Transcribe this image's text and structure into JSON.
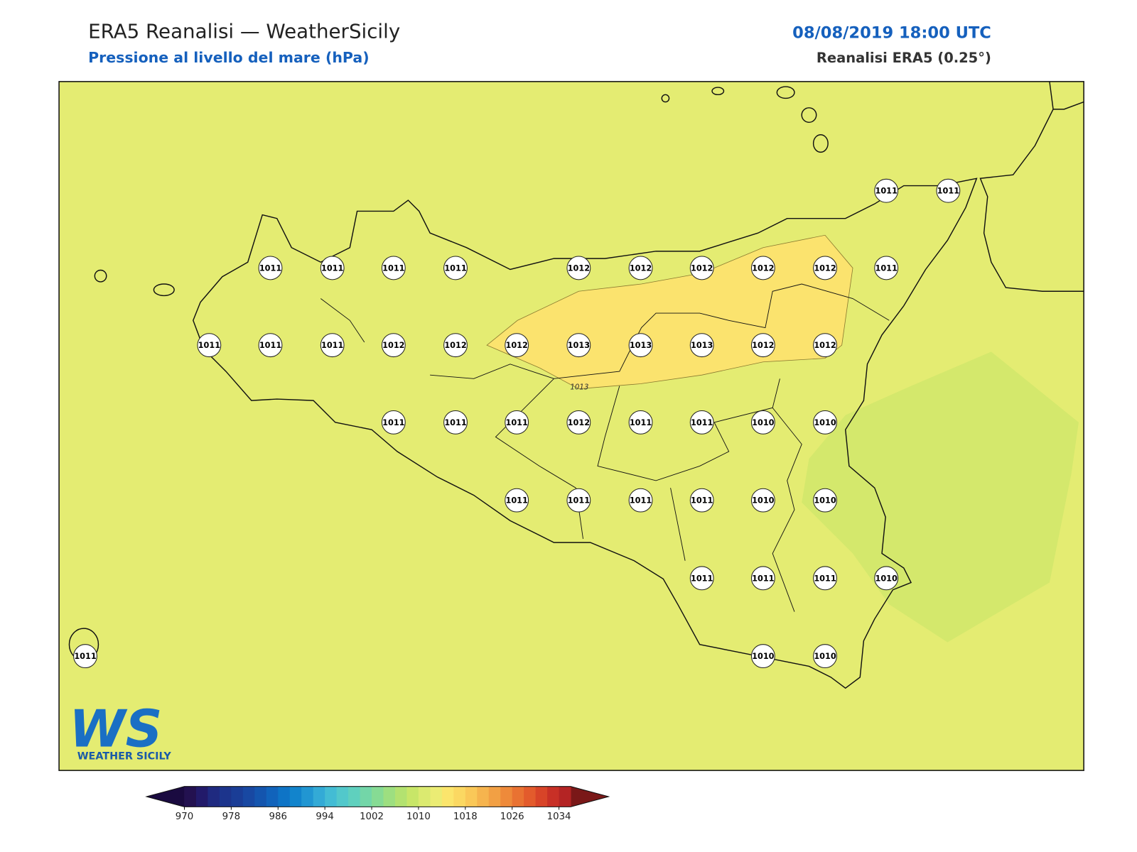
{
  "header": {
    "title": "ERA5 Reanalisi — WeatherSicily",
    "subtitle": "Pressione al livello del mare (hPa)",
    "date": "08/08/2019 18:00 UTC",
    "source": "Reanalisi ERA5 (0.25°)"
  },
  "stations": [
    [
      1011,
      1011
    ],
    [
      1011,
      1011,
      1011,
      1011,
      1012,
      1012,
      1012,
      1012,
      1012,
      1011
    ],
    [
      1011,
      1011,
      1011,
      1012,
      1012,
      1012,
      1013,
      1013,
      1013,
      1012,
      1012
    ],
    [
      1011,
      1011,
      1011,
      1012,
      1011,
      1011,
      1010,
      1010
    ],
    [
      1011,
      1011,
      1011,
      1011,
      1010,
      1010
    ],
    [
      1011,
      1011,
      1011,
      1010
    ],
    [
      1011,
      1010,
      1010
    ]
  ],
  "contour_label": 1013,
  "colorbar": {
    "ticks": [
      970,
      978,
      986,
      994,
      1002,
      1010,
      1018,
      1026,
      1034
    ],
    "step": 2,
    "colors": [
      "#231150",
      "#221a6a",
      "#1f2a80",
      "#1c348c",
      "#1a3d96",
      "#1848a2",
      "#1455ae",
      "#1163bb",
      "#0e74c6",
      "#1284cc",
      "#2196d2",
      "#33aad6",
      "#43bcd4",
      "#52c8cb",
      "#5fd0be",
      "#73d6a8",
      "#86db94",
      "#9ddf80",
      "#b3e270",
      "#c8e668",
      "#dbea70",
      "#ebec74",
      "#fbe56c",
      "#fbd862",
      "#fac858",
      "#f6b44e",
      "#f2a044",
      "#ee8a3a",
      "#e97232",
      "#e35b2c",
      "#d84428",
      "#c83026",
      "#b42424"
    ],
    "under": "#1a0a40",
    "over": "#7a1818"
  },
  "logo": {
    "mark": "WS",
    "name": "WEATHER SICILY"
  }
}
